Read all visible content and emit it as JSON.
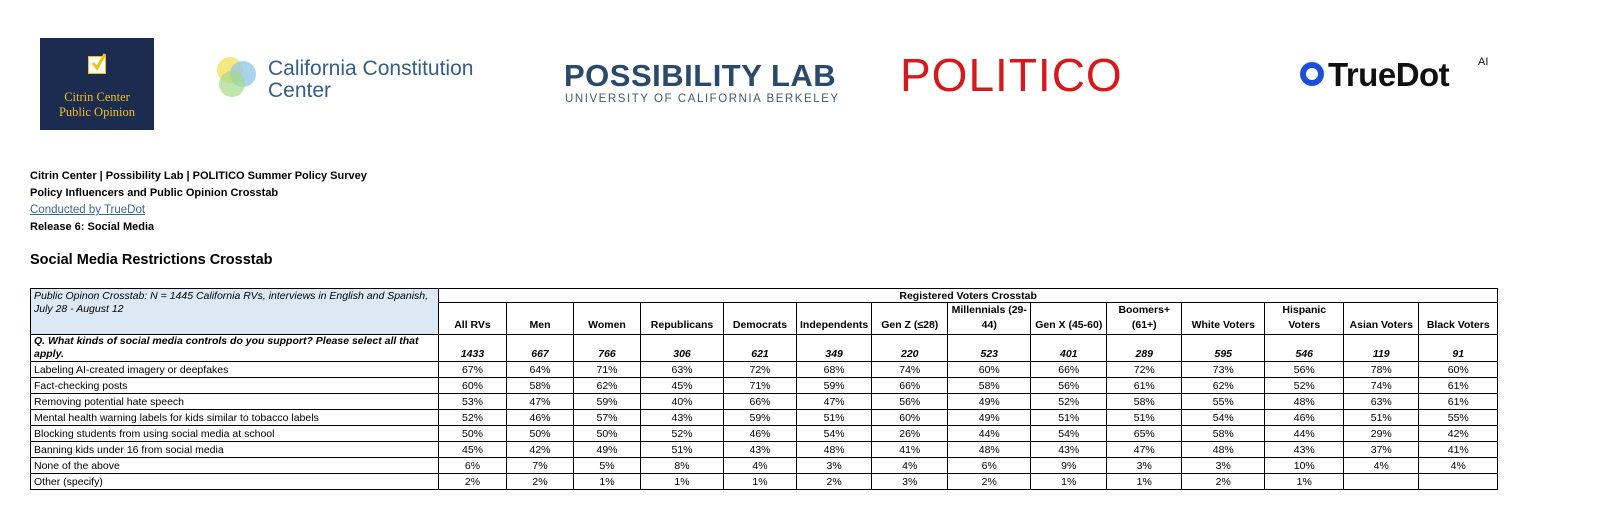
{
  "logos": {
    "citrin": {
      "line1": "Citrin Center",
      "line2": "Public Opinion",
      "bg": "#1c2b50",
      "accent": "#f0c020",
      "icon": "checkbox-icon"
    },
    "ccc": {
      "line1": "California Constitution",
      "line2": "Center",
      "icon": "overlapping-circles-icon"
    },
    "possibility": {
      "line1": "POSSIBILITY LAB",
      "line2": "UNIVERSITY OF CALIFORNIA BERKELEY"
    },
    "politico": {
      "text": "POLITICO",
      "color": "#d7191c"
    },
    "truedot": {
      "text": "TrueDot",
      "sup": "AI",
      "icon": "ring-icon",
      "color": "#1d4ed8"
    }
  },
  "header": {
    "line1": "Citrin Center | Possibility Lab | POLITICO Summer Policy Survey",
    "line2": "Policy Influencers and Public Opinion Crosstab",
    "link": "Conducted by TrueDot",
    "line4": "Release 6: Social Media"
  },
  "section_title": "Social Media Restrictions Crosstab",
  "table": {
    "info": "Public Opinon Crosstab: N = 1445 California RVs, interviews in English and Spanish, July 28 - August 12",
    "group_header": "Registered Voters Crosstab",
    "columns": [
      "All RVs",
      "Men",
      "Women",
      "Republicans",
      "Democrats",
      "Independents",
      "Gen Z (≤28)",
      "Millennials (29-44)",
      "Gen X (45-60)",
      "Boomers+ (61+)",
      "White Voters",
      "Hispanic Voters",
      "Asian Voters",
      "Black Voters"
    ],
    "question": "Q. What kinds of social media controls do you support? Please select all that apply.",
    "n": [
      "1433",
      "667",
      "766",
      "306",
      "621",
      "349",
      "220",
      "523",
      "401",
      "289",
      "595",
      "546",
      "119",
      "91"
    ],
    "rows": [
      {
        "label": "Labeling AI-created imagery or deepfakes",
        "values": [
          "67%",
          "64%",
          "71%",
          "63%",
          "72%",
          "68%",
          "74%",
          "60%",
          "66%",
          "72%",
          "73%",
          "56%",
          "78%",
          "60%"
        ]
      },
      {
        "label": "Fact-checking posts",
        "values": [
          "60%",
          "58%",
          "62%",
          "45%",
          "71%",
          "59%",
          "66%",
          "58%",
          "56%",
          "61%",
          "62%",
          "52%",
          "74%",
          "61%"
        ]
      },
      {
        "label": "Removing potential hate speech",
        "values": [
          "53%",
          "47%",
          "59%",
          "40%",
          "66%",
          "47%",
          "56%",
          "49%",
          "52%",
          "58%",
          "55%",
          "48%",
          "63%",
          "61%"
        ]
      },
      {
        "label": "Mental health warning labels for kids similar to tobacco labels",
        "values": [
          "52%",
          "46%",
          "57%",
          "43%",
          "59%",
          "51%",
          "60%",
          "49%",
          "51%",
          "51%",
          "54%",
          "46%",
          "51%",
          "55%"
        ]
      },
      {
        "label": "Blocking students from using social media at school",
        "values": [
          "50%",
          "50%",
          "50%",
          "52%",
          "46%",
          "54%",
          "26%",
          "44%",
          "54%",
          "65%",
          "58%",
          "44%",
          "29%",
          "42%"
        ]
      },
      {
        "label": "Banning kids under 16 from social media",
        "values": [
          "45%",
          "42%",
          "49%",
          "51%",
          "43%",
          "48%",
          "41%",
          "48%",
          "43%",
          "47%",
          "48%",
          "43%",
          "37%",
          "41%"
        ]
      },
      {
        "label": "None of the above",
        "values": [
          "6%",
          "7%",
          "5%",
          "8%",
          "4%",
          "3%",
          "4%",
          "6%",
          "9%",
          "3%",
          "3%",
          "10%",
          "4%",
          "4%"
        ]
      },
      {
        "label": "Other (specify)",
        "values": [
          "2%",
          "2%",
          "1%",
          "1%",
          "1%",
          "2%",
          "3%",
          "2%",
          "1%",
          "1%",
          "2%",
          "1%",
          "",
          ""
        ]
      }
    ]
  }
}
